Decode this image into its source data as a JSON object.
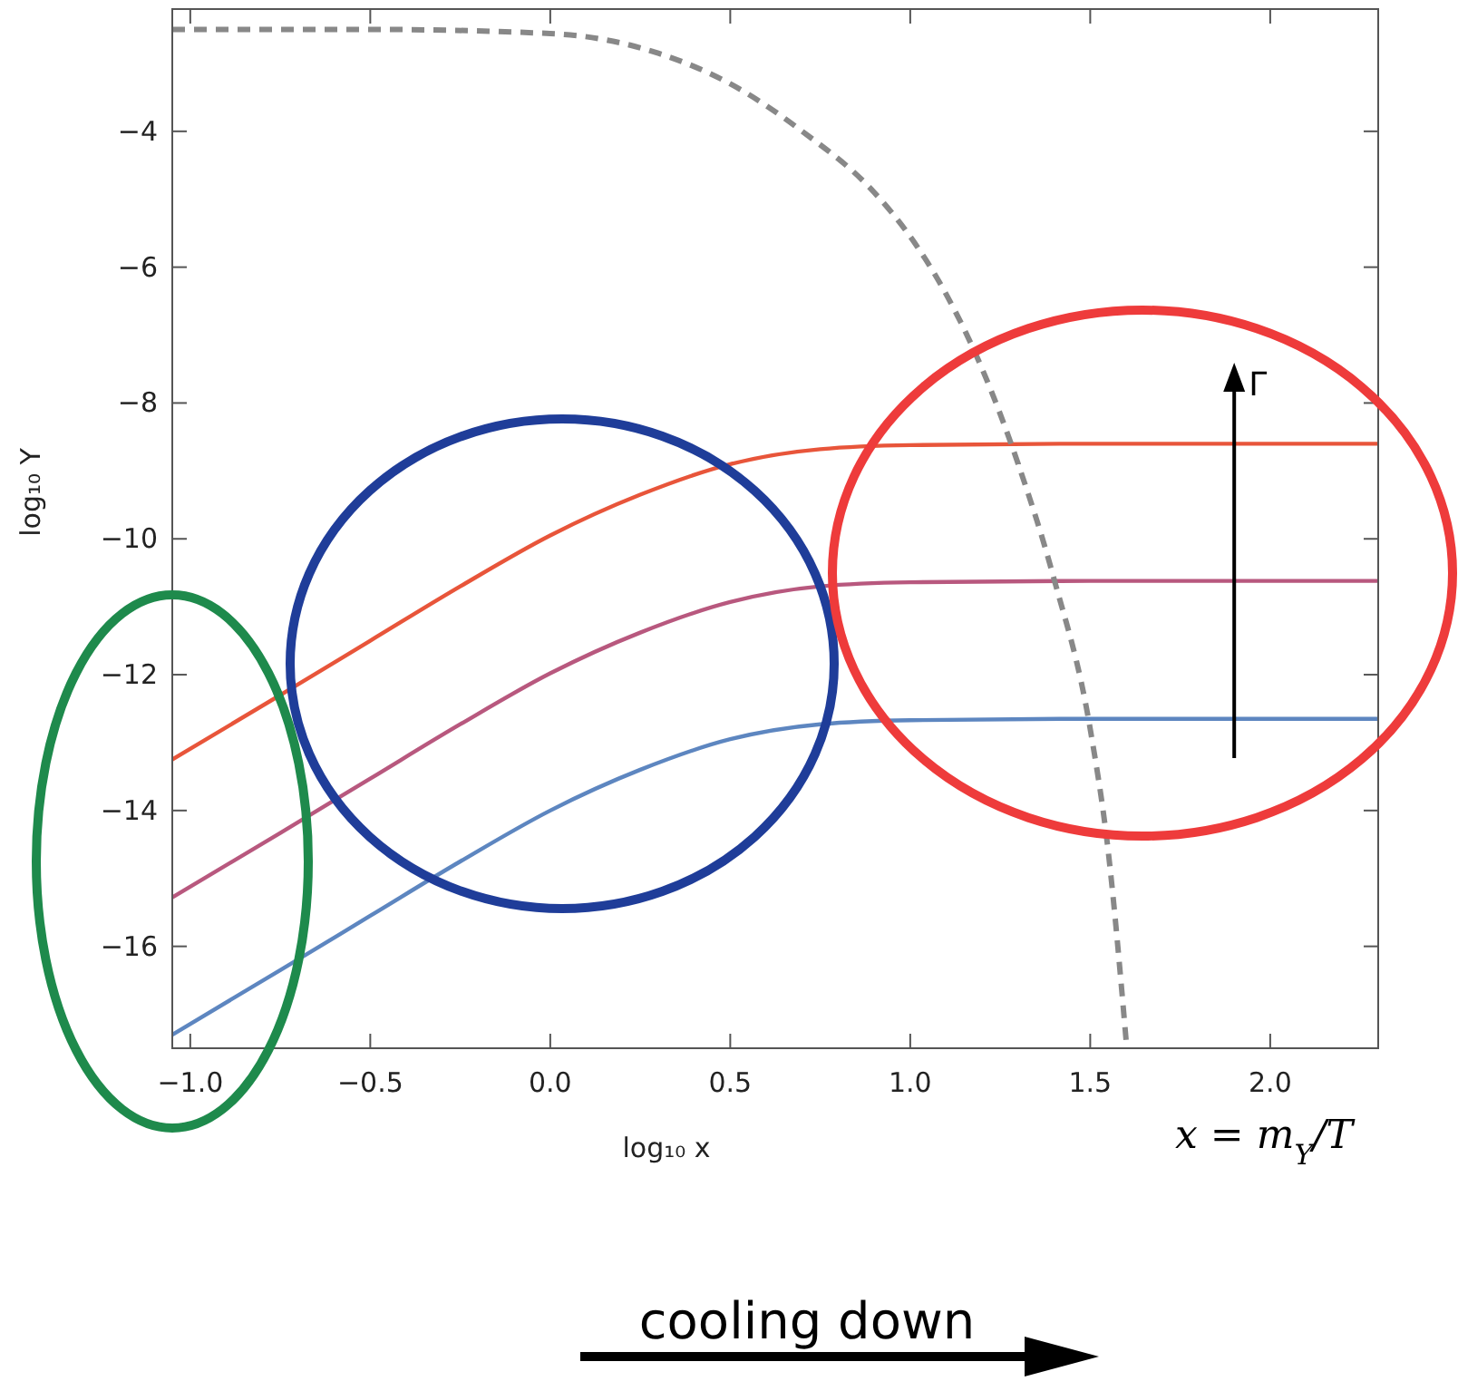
{
  "chart_data": {
    "type": "line",
    "xlabel": "log₁₀ x",
    "ylabel": "log₁₀ Y",
    "x": [
      -1.05,
      -0.75,
      -0.5,
      -0.25,
      0,
      0.25,
      0.5,
      0.75,
      1.0,
      1.5,
      2.3
    ],
    "series": [
      {
        "color": "#e8553a",
        "values": [
          -13.25,
          -12.3,
          -11.5,
          -10.7,
          -9.95,
          -9.35,
          -8.9,
          -8.68,
          -8.62,
          -8.6,
          -8.6
        ]
      },
      {
        "color": "#b8587e",
        "values": [
          -15.28,
          -14.33,
          -13.53,
          -12.73,
          -11.98,
          -11.38,
          -10.93,
          -10.7,
          -10.64,
          -10.62,
          -10.62
        ]
      },
      {
        "color": "#5d86c0",
        "values": [
          -17.3,
          -16.35,
          -15.55,
          -14.75,
          -14.0,
          -13.4,
          -12.95,
          -12.73,
          -12.67,
          -12.65,
          -12.65
        ]
      },
      {
        "color": "#888888",
        "line_style": "dashed",
        "x": [
          -1.05,
          -0.5,
          0,
          0.3,
          0.5,
          0.7,
          0.9,
          1.0,
          1.1,
          1.2,
          1.3,
          1.4,
          1.5,
          1.55,
          1.6
        ],
        "values": [
          -2.5,
          -2.5,
          -2.56,
          -2.85,
          -3.3,
          -4.0,
          -4.9,
          -5.55,
          -6.4,
          -7.5,
          -8.9,
          -10.6,
          -12.8,
          -14.6,
          -17.4
        ]
      }
    ],
    "xlim": [
      -1.05,
      2.3
    ],
    "ylim": [
      -17.5,
      -2.2
    ],
    "xticks": [
      {
        "value": -1,
        "label": "−1.0"
      },
      {
        "value": -0.5,
        "label": "−0.5"
      },
      {
        "value": 0,
        "label": "0.0"
      },
      {
        "value": 0.5,
        "label": "0.5"
      },
      {
        "value": 1,
        "label": "1.0"
      },
      {
        "value": 1.5,
        "label": "1.5"
      },
      {
        "value": 2,
        "label": "2.0"
      }
    ],
    "yticks": [
      {
        "value": -4,
        "label": "−4"
      },
      {
        "value": -6,
        "label": "−6"
      },
      {
        "value": -8,
        "label": "−8"
      },
      {
        "value": -10,
        "label": "−10"
      },
      {
        "value": -12,
        "label": "−12"
      },
      {
        "value": -14,
        "label": "−14"
      },
      {
        "value": -16,
        "label": "−16"
      }
    ],
    "annotations": [
      "Γ",
      "x = m$_{Y}$/T",
      "cooling down"
    ]
  }
}
